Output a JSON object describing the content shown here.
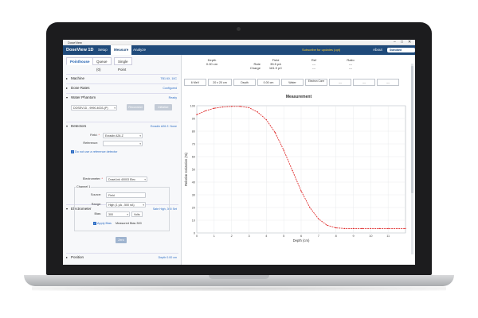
{
  "window": {
    "title": "DoseView",
    "controls": [
      "–",
      "□",
      "✕"
    ]
  },
  "navbar": {
    "brand": "DoseView 1D",
    "menus": [
      "Setup",
      "Measure",
      "Analyze"
    ],
    "active_menu": "Measure",
    "promo": "Subscribe for updates (opt)",
    "about": "About",
    "logo": "Standard Imaging"
  },
  "left": {
    "tabs": [
      "Pointhouse",
      "Queue (0)",
      "Single Point"
    ],
    "sections": {
      "machine": {
        "label": "Machine",
        "status": "TB1 6X, 10C"
      },
      "dose_rates": {
        "label": "Dose Rates",
        "status": "Configured"
      },
      "water_phantom": {
        "label": "Water Phantom",
        "status": "Ready",
        "model": "DOSEV1D - 9990-4003-(P)",
        "reconnect": "Reconnect",
        "initialize": "Initialize"
      },
      "detectors": {
        "label": "Detectors",
        "status": "Exradin A26 Z. None",
        "field_label": "Field:",
        "field_value": "Exradin A26-Z",
        "reference_label": "Reference:",
        "reference_value": "",
        "checkbox": "Do not use a reference detector"
      },
      "electrometer": {
        "label": "Electrometer",
        "status": "Sate High, 300 Set",
        "electrometer_label": "Electrometer:",
        "electrometer_value": "DoseLink 40003 Elec",
        "channel_label": "Channel 1",
        "source_label": "Source:",
        "source_value": "Field",
        "range_label": "Range:",
        "range_value": "High (1 pA - 500 nA)",
        "bias_label": "Bias:",
        "bias_value": "300",
        "bias_unit": "Volts",
        "apply_bias": "Apply Bias",
        "measured_bias": "Measured Bias 300",
        "zero_button": "Zero"
      },
      "position": {
        "label": "Position",
        "status": "Depth 0.00 cm"
      }
    }
  },
  "right": {
    "header": {
      "depth_label": "Depth",
      "depth_value": "0.00 cm",
      "field_label": "Field",
      "rate_label": "Rate",
      "rate_value": "35.5 pA",
      "charge_label": "Charge",
      "charge_value": "181.9 pC",
      "ref_label": "Ref",
      "ref_rate": "---",
      "ref_charge": "---",
      "ratio_label": "Ratio",
      "ratio_rate": "---",
      "ratio_charge": "---"
    },
    "summary": [
      "6 MeV",
      "20 x 20 cm",
      "Depth",
      "0.00 cm",
      "Water",
      "Electron Cone",
      "---",
      "---",
      "---"
    ]
  },
  "chart_data": {
    "type": "line",
    "title": "Measurement",
    "xlabel": "Depth (cm)",
    "ylabel": "Relative Ionization (%)",
    "xlim": [
      0,
      12
    ],
    "ylim": [
      0,
      100
    ],
    "xticks": [
      0,
      1,
      2,
      3,
      4,
      5,
      6,
      7,
      8,
      9,
      10,
      11
    ],
    "yticks": [
      0,
      10,
      20,
      30,
      40,
      50,
      60,
      70,
      80,
      90,
      100
    ],
    "grid": true,
    "color": "#e03030",
    "x": [
      0,
      0.5,
      1,
      1.5,
      2,
      2.5,
      3,
      3.5,
      4,
      4.5,
      5,
      5.5,
      6,
      6.5,
      7,
      7.5,
      8,
      8.5,
      9,
      9.5,
      10,
      10.5,
      11,
      11.5,
      12
    ],
    "y": [
      93,
      96,
      98,
      99,
      99.5,
      99.5,
      98.5,
      95,
      89,
      79,
      65,
      49,
      33,
      20,
      11,
      6,
      4,
      3.5,
      3.5,
      3.5,
      3.5,
      3.5,
      3.5,
      3.5,
      3.5
    ]
  }
}
